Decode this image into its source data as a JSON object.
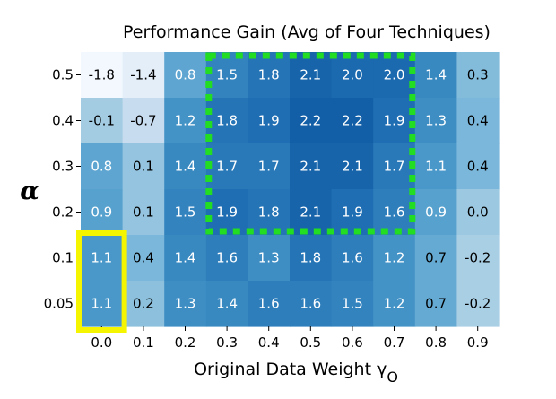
{
  "chart_data": {
    "type": "heatmap",
    "title": "Performance Gain (Avg of Four Techniques)",
    "xlabel": "Original Data Weight γ",
    "xlabel_sub": "O",
    "ylabel": "α",
    "x_ticks": [
      "0.0",
      "0.1",
      "0.2",
      "0.3",
      "0.4",
      "0.5",
      "0.6",
      "0.7",
      "0.8",
      "0.9"
    ],
    "y_ticks": [
      "0.5",
      "0.4",
      "0.3",
      "0.2",
      "0.1",
      "0.05"
    ],
    "values": [
      [
        -1.8,
        -1.4,
        0.8,
        1.5,
        1.8,
        2.1,
        2.0,
        2.0,
        1.4,
        0.3
      ],
      [
        -0.1,
        -0.7,
        1.2,
        1.8,
        1.9,
        2.2,
        2.2,
        1.9,
        1.3,
        0.4
      ],
      [
        0.8,
        0.1,
        1.4,
        1.7,
        1.7,
        2.1,
        2.1,
        1.7,
        1.1,
        0.4
      ],
      [
        0.9,
        0.1,
        1.5,
        1.9,
        1.8,
        2.1,
        1.9,
        1.6,
        0.9,
        0.0
      ],
      [
        1.1,
        0.4,
        1.4,
        1.6,
        1.3,
        1.8,
        1.6,
        1.2,
        0.7,
        -0.2
      ],
      [
        1.1,
        0.2,
        1.3,
        1.4,
        1.6,
        1.6,
        1.5,
        1.2,
        0.7,
        -0.2
      ]
    ],
    "colormap": "Blues",
    "value_range": [
      -1.8,
      2.2
    ],
    "colorbar": false,
    "grid": false,
    "highlights": [
      {
        "name": "best-region",
        "color": "#22dd22",
        "style": "dotted",
        "rows": [
          0,
          3
        ],
        "cols": [
          3,
          7
        ]
      },
      {
        "name": "baseline-column",
        "color": "#f5f500",
        "style": "solid",
        "rows": [
          4,
          5
        ],
        "cols": [
          0,
          0
        ]
      }
    ]
  }
}
